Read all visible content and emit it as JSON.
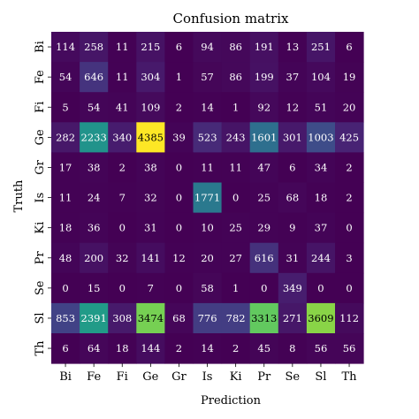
{
  "chart_data": {
    "type": "heatmap",
    "title": "Confusion matrix",
    "xlabel": "Prediction",
    "ylabel": "Truth",
    "x_categories": [
      "Bi",
      "Fe",
      "Fi",
      "Ge",
      "Gr",
      "Is",
      "Ki",
      "Pr",
      "Se",
      "Sl",
      "Th"
    ],
    "y_categories": [
      "Bi",
      "Fe",
      "Fi",
      "Ge",
      "Gr",
      "Is",
      "Ki",
      "Pr",
      "Se",
      "Sl",
      "Th"
    ],
    "colormap": "viridis",
    "values": [
      [
        114,
        258,
        11,
        215,
        6,
        94,
        86,
        191,
        13,
        251,
        6
      ],
      [
        54,
        646,
        11,
        304,
        1,
        57,
        86,
        199,
        37,
        104,
        19
      ],
      [
        5,
        54,
        41,
        109,
        2,
        14,
        1,
        92,
        12,
        51,
        20
      ],
      [
        282,
        2233,
        340,
        4385,
        39,
        523,
        243,
        1601,
        301,
        1003,
        425
      ],
      [
        17,
        38,
        2,
        38,
        0,
        11,
        11,
        47,
        6,
        34,
        2
      ],
      [
        11,
        24,
        7,
        32,
        0,
        1771,
        0,
        25,
        68,
        18,
        2
      ],
      [
        18,
        36,
        0,
        31,
        0,
        10,
        25,
        29,
        9,
        37,
        0
      ],
      [
        48,
        200,
        32,
        141,
        12,
        20,
        27,
        616,
        31,
        244,
        3
      ],
      [
        0,
        15,
        0,
        7,
        0,
        58,
        1,
        0,
        349,
        0,
        0
      ],
      [
        853,
        2391,
        308,
        3474,
        68,
        776,
        782,
        3313,
        271,
        3609,
        112
      ],
      [
        6,
        64,
        18,
        144,
        2,
        14,
        2,
        45,
        8,
        56,
        56
      ]
    ]
  }
}
